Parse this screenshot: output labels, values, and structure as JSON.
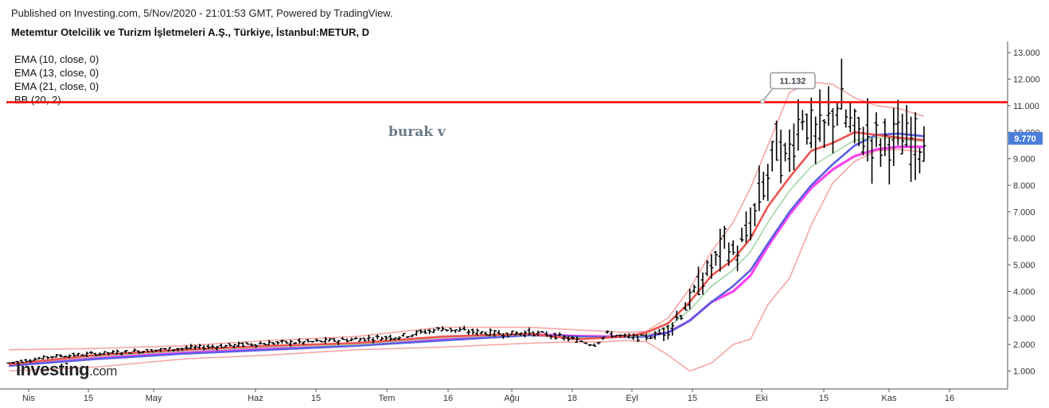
{
  "header": {
    "published": "Published on Investing.com, 5/Nov/2020 - 21:01:53 GMT, Powered by TradingView.",
    "title": "Metemtur Otelcilik ve Turizm İşletmeleri A.Ş., Türkiye, İstanbul:METUR, D"
  },
  "legend": [
    "EMA (10, close, 0)",
    "EMA (13, close, 0)",
    "EMA (21, close, 0)",
    "BB (20, 2)"
  ],
  "watermark": "burak v",
  "logo": {
    "main": "Investing",
    "suffix": ".com"
  },
  "colors": {
    "ema10": "#ef5350",
    "ema13": "#a5d6a7",
    "ema21": "#5c5ce6",
    "bb_band": "#f6a5a5",
    "bb_basis": "#ff44ee",
    "hline": "#ff0000",
    "price_tag": "#4a7fd9"
  },
  "chart_data": {
    "type": "line",
    "y_axis": {
      "range": [
        0.7,
        13.3
      ],
      "ticks": [
        "1.000",
        "2.000",
        "3.000",
        "4.000",
        "5.000",
        "6.000",
        "7.000",
        "8.000",
        "9.000",
        "10.000",
        "11.000",
        "12.000",
        "13.000"
      ]
    },
    "x_axis": {
      "ticks": [
        "Nis",
        "15",
        "May",
        "Haz",
        "15",
        "Tem",
        "16",
        "Ağu",
        "18",
        "Eyl",
        "15",
        "Eki",
        "15",
        "Kas",
        "16"
      ]
    },
    "horizontal_line": {
      "value": 11.132,
      "label": "11.132"
    },
    "last_price": {
      "value": 9.77,
      "label": "9.770"
    },
    "series": [
      {
        "name": "EMA (10, close, 0)",
        "x": [
          0,
          20,
          40,
          60,
          80,
          100,
          120,
          131,
          137,
          142,
          147,
          152,
          157,
          162,
          167,
          171,
          175,
          180,
          185,
          190,
          195,
          200,
          205,
          211
        ],
        "y": [
          1.25,
          1.6,
          1.8,
          1.95,
          2.05,
          2.3,
          2.4,
          2.2,
          2.25,
          2.3,
          2.45,
          2.8,
          3.6,
          4.6,
          5.2,
          6.0,
          7.2,
          8.3,
          9.3,
          9.6,
          10.0,
          9.9,
          9.8,
          9.7
        ]
      },
      {
        "name": "EMA (13, close, 0)",
        "x": [
          0,
          20,
          40,
          60,
          80,
          100,
          120,
          131,
          137,
          142,
          147,
          152,
          157,
          162,
          167,
          171,
          175,
          180,
          185,
          190,
          195,
          200,
          205,
          211
        ],
        "y": [
          1.25,
          1.55,
          1.75,
          1.9,
          2.0,
          2.25,
          2.38,
          2.25,
          2.25,
          2.28,
          2.35,
          2.65,
          3.3,
          4.2,
          4.8,
          5.5,
          6.6,
          7.8,
          8.7,
          9.2,
          9.7,
          9.8,
          9.75,
          9.65
        ]
      },
      {
        "name": "EMA (21, close, 0)",
        "x": [
          0,
          20,
          40,
          60,
          80,
          100,
          120,
          131,
          137,
          142,
          147,
          152,
          157,
          162,
          167,
          171,
          175,
          180,
          185,
          190,
          195,
          200,
          205,
          211
        ],
        "y": [
          1.2,
          1.45,
          1.65,
          1.8,
          1.95,
          2.15,
          2.35,
          2.3,
          2.28,
          2.28,
          2.3,
          2.45,
          2.9,
          3.6,
          4.2,
          4.8,
          5.8,
          7.0,
          8.0,
          8.8,
          9.5,
          9.9,
          9.95,
          9.85
        ]
      },
      {
        "name": "BB (20, 2)",
        "x": [
          0,
          20,
          40,
          60,
          80,
          100,
          120,
          131,
          137,
          142,
          147,
          152,
          157,
          162,
          167,
          171,
          175,
          180,
          185,
          190,
          195,
          200,
          205,
          211
        ],
        "y": [
          1.2,
          1.5,
          1.7,
          1.85,
          2.0,
          2.2,
          2.38,
          2.32,
          2.3,
          2.3,
          2.33,
          2.45,
          2.9,
          3.6,
          4.0,
          4.6,
          5.7,
          6.9,
          7.9,
          8.6,
          9.1,
          9.35,
          9.45,
          9.45
        ]
      }
    ],
    "bb_upper": {
      "x": [
        0,
        20,
        40,
        60,
        80,
        100,
        120,
        131,
        137,
        142,
        147,
        152,
        157,
        162,
        167,
        171,
        175,
        180,
        185,
        190,
        195,
        200,
        205,
        211
      ],
      "y": [
        1.8,
        1.85,
        1.95,
        2.15,
        2.3,
        2.65,
        2.65,
        2.55,
        2.5,
        2.45,
        2.5,
        3.0,
        4.1,
        5.5,
        6.6,
        7.9,
        9.5,
        11.5,
        11.9,
        11.8,
        11.3,
        11.0,
        10.9,
        10.6
      ]
    },
    "bb_lower": {
      "x": [
        0,
        20,
        40,
        60,
        80,
        100,
        120,
        131,
        137,
        142,
        147,
        152,
        157,
        162,
        167,
        171,
        175,
        180,
        185,
        190,
        195,
        200,
        205,
        211
      ],
      "y": [
        1.0,
        1.15,
        1.45,
        1.6,
        1.8,
        1.9,
        2.05,
        2.1,
        2.1,
        2.15,
        2.1,
        1.6,
        1.0,
        1.3,
        2.0,
        2.2,
        3.5,
        4.5,
        6.5,
        8.1,
        8.9,
        9.3,
        9.35,
        9.25
      ]
    },
    "price_path": {
      "x": [
        0,
        10,
        20,
        30,
        40,
        50,
        60,
        70,
        80,
        90,
        100,
        105,
        110,
        115,
        120,
        125,
        130,
        135,
        138,
        142,
        145,
        148,
        150,
        152,
        155,
        158,
        160,
        163,
        165,
        167,
        169,
        171,
        173,
        175,
        177,
        179,
        181,
        183,
        185,
        187,
        189,
        191,
        193,
        195,
        197,
        199,
        201,
        203,
        205,
        207,
        209,
        211
      ],
      "y": [
        1.3,
        1.55,
        1.65,
        1.75,
        1.85,
        1.95,
        2.05,
        2.1,
        2.2,
        2.3,
        2.6,
        2.5,
        2.45,
        2.4,
        2.45,
        2.35,
        2.2,
        2.0,
        2.4,
        2.3,
        2.25,
        2.3,
        2.4,
        2.6,
        3.2,
        3.9,
        4.5,
        5.2,
        5.9,
        5.4,
        5.7,
        6.5,
        7.5,
        8.4,
        9.5,
        8.8,
        9.9,
        10.9,
        10.0,
        9.8,
        10.3,
        11.2,
        10.5,
        10.0,
        9.9,
        9.8,
        9.6,
        9.8,
        9.7,
        9.6,
        9.7,
        9.77
      ]
    }
  }
}
